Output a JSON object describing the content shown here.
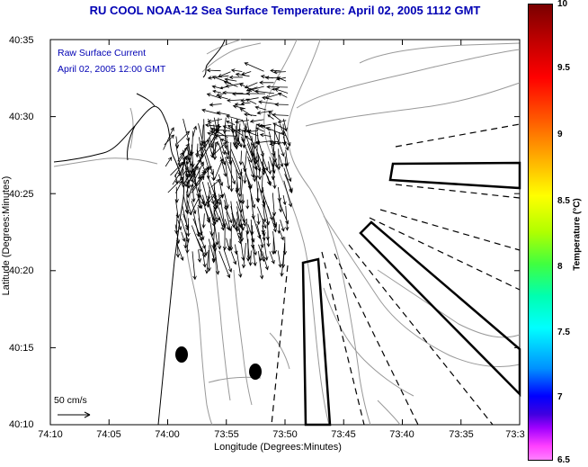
{
  "title": "RU COOL  NOAA-12  Sea Surface Temperature:  April 02, 2005 1112 GMT",
  "legend": {
    "line1": "Raw Surface Current",
    "line2": "April 02, 2005 12:00 GMT",
    "scale_label": "50 cm/s"
  },
  "axes": {
    "xlabel": "Longitude (Degrees:Minutes)",
    "ylabel": "Latitude (Degrees:Minutes)",
    "x_ticks": [
      "74:10",
      "74:05",
      "74:00",
      "73:55",
      "73:50",
      "73:45",
      "73:40",
      "73:35",
      "73:3"
    ],
    "y_ticks": [
      "40:35",
      "40:30",
      "40:25",
      "40:20",
      "40:15",
      "40:10"
    ]
  },
  "colorbar": {
    "title": "Temperature (°C)",
    "labels": [
      "10",
      "9.5",
      "9",
      "8.5",
      "8",
      "7.5",
      "7",
      "6.5"
    ],
    "range": [
      6.5,
      10
    ]
  },
  "colors": {
    "title": "#0000b4",
    "coast": "#000000",
    "bathymetry": "#999999"
  }
}
